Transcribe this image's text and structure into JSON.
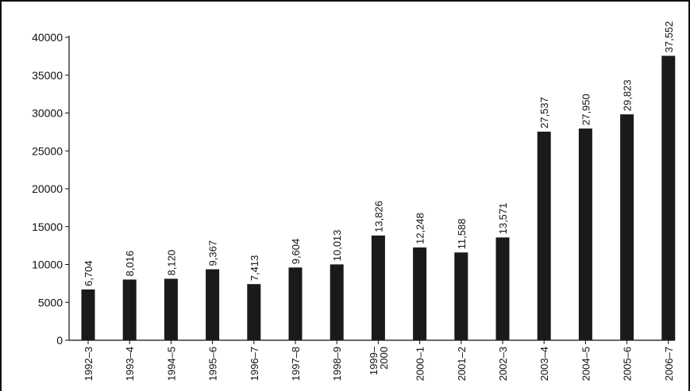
{
  "chart_data": {
    "type": "bar",
    "categories": [
      "1992–3",
      "1993–4",
      "1994–5",
      "1995–6",
      "1996–7",
      "1997–8",
      "1998–9",
      "1999– 2000",
      "2000–1",
      "2001–2",
      "2002–3",
      "2003–4",
      "2004–5",
      "2005–6",
      "2006–7"
    ],
    "values": [
      6704,
      8016,
      8120,
      9367,
      7413,
      9604,
      10013,
      13826,
      12248,
      11588,
      13571,
      27537,
      27950,
      29823,
      37552
    ],
    "value_labels": [
      "6,704",
      "8,016",
      "8,120",
      "9,367",
      "7,413",
      "9,604",
      "10,013",
      "13,826",
      "12,248",
      "11,588",
      "13,571",
      "27,537",
      "27,950",
      "29,823",
      "37,552"
    ],
    "yticks": [
      "0",
      "5000",
      "10000",
      "15000",
      "20000",
      "25000",
      "30000",
      "35000",
      "40000"
    ],
    "ylim": [
      0,
      40000
    ],
    "bar_color": "#1a1a1a",
    "grid": false,
    "title": "",
    "xlabel": "",
    "ylabel": ""
  }
}
